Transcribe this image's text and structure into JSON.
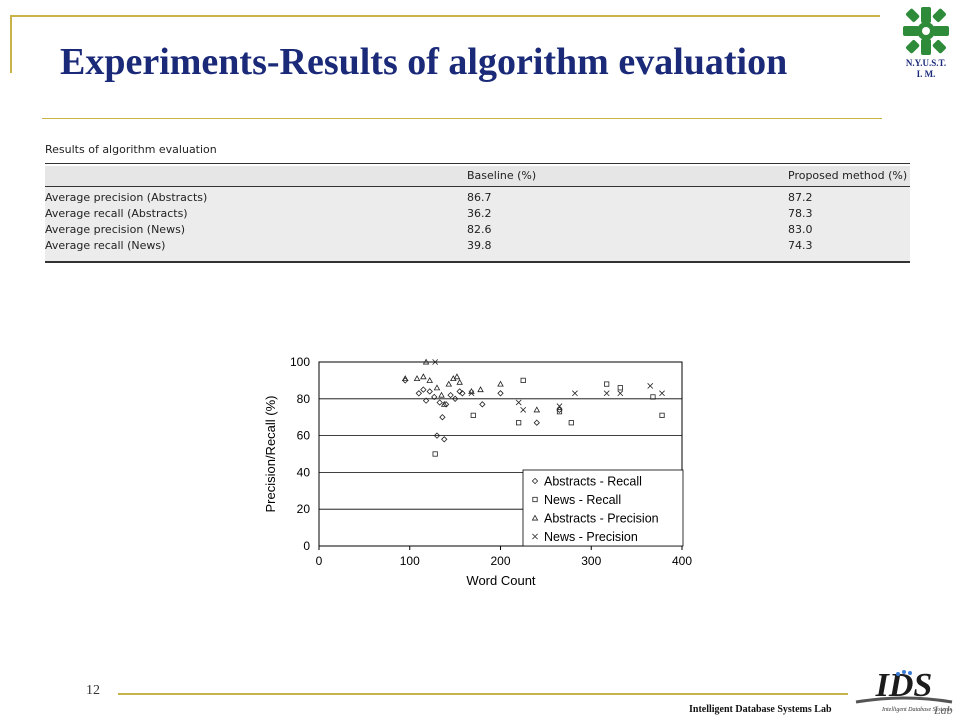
{
  "slide": {
    "title": "Experiments-Results of algorithm evaluation",
    "page_number": "12",
    "footer": "Intelligent Database Systems Lab",
    "org_line1": "N.Y.U.S.T.",
    "org_line2": "I. M.",
    "lab_logo_text": "IDS",
    "lab_logo_sub": "Lab",
    "lab_logo_tagline": "Intelligent Database Systems"
  },
  "table": {
    "caption": "Results of algorithm evaluation",
    "headers": [
      "",
      "Baseline (%)",
      "Proposed method (%)"
    ],
    "rows": [
      [
        "Average precision (Abstracts)",
        "86.7",
        "87.2"
      ],
      [
        "Average recall (Abstracts)",
        "36.2",
        "78.3"
      ],
      [
        "Average precision (News)",
        "82.6",
        "83.0"
      ],
      [
        "Average recall (News)",
        "39.8",
        "74.3"
      ]
    ]
  },
  "chart_data": {
    "type": "scatter",
    "title": "",
    "xlabel": "Word Count",
    "ylabel": "Precision/Recall (%)",
    "xlim": [
      0,
      400
    ],
    "ylim": [
      0,
      100
    ],
    "xticks": [
      "0",
      "100",
      "200",
      "300",
      "400"
    ],
    "yticks": [
      "0",
      "20",
      "40",
      "60",
      "80",
      "100"
    ],
    "grid": "horizontal",
    "legend_position": "bottom-right",
    "series": [
      {
        "name": "Abstracts - Recall",
        "marker": "diamond",
        "points": [
          [
            95,
            90
          ],
          [
            110,
            83
          ],
          [
            115,
            85
          ],
          [
            118,
            79
          ],
          [
            122,
            84
          ],
          [
            127,
            81
          ],
          [
            130,
            60
          ],
          [
            133,
            78
          ],
          [
            136,
            70
          ],
          [
            138,
            58
          ],
          [
            140,
            77
          ],
          [
            145,
            82
          ],
          [
            150,
            80
          ],
          [
            155,
            84
          ],
          [
            158,
            83
          ],
          [
            180,
            77
          ],
          [
            200,
            83
          ],
          [
            240,
            67
          ],
          [
            265,
            74
          ]
        ]
      },
      {
        "name": "News - Recall",
        "marker": "square",
        "points": [
          [
            128,
            50
          ],
          [
            170,
            71
          ],
          [
            220,
            67
          ],
          [
            225,
            90
          ],
          [
            265,
            73
          ],
          [
            278,
            67
          ],
          [
            317,
            88
          ],
          [
            332,
            86
          ],
          [
            368,
            81
          ],
          [
            378,
            71
          ]
        ]
      },
      {
        "name": "Abstracts - Precision",
        "marker": "triangle",
        "points": [
          [
            95,
            91
          ],
          [
            108,
            91
          ],
          [
            115,
            92
          ],
          [
            118,
            100
          ],
          [
            122,
            90
          ],
          [
            130,
            86
          ],
          [
            135,
            82
          ],
          [
            138,
            77
          ],
          [
            143,
            88
          ],
          [
            148,
            91
          ],
          [
            152,
            92
          ],
          [
            155,
            89
          ],
          [
            168,
            84
          ],
          [
            178,
            85
          ],
          [
            200,
            88
          ],
          [
            240,
            74
          ]
        ]
      },
      {
        "name": "News - Precision",
        "marker": "x",
        "points": [
          [
            128,
            100
          ],
          [
            168,
            83
          ],
          [
            220,
            78
          ],
          [
            225,
            74
          ],
          [
            265,
            76
          ],
          [
            282,
            83
          ],
          [
            317,
            83
          ],
          [
            332,
            83
          ],
          [
            365,
            87
          ],
          [
            378,
            83
          ]
        ]
      }
    ]
  }
}
